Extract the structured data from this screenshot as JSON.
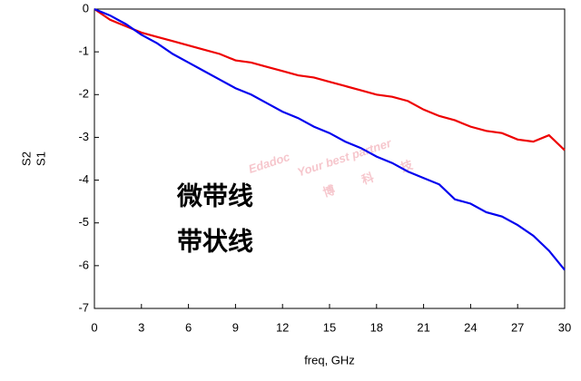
{
  "chart_data": {
    "type": "line",
    "xlabel": "freq, GHz",
    "x": [
      0,
      1,
      2,
      3,
      4,
      5,
      6,
      7,
      8,
      9,
      10,
      11,
      12,
      13,
      14,
      15,
      16,
      17,
      18,
      19,
      20,
      21,
      22,
      23,
      24,
      25,
      26,
      27,
      28,
      29,
      30
    ],
    "series": [
      {
        "name": "S2",
        "color": "#ee0000",
        "values": [
          0,
          -0.25,
          -0.4,
          -0.55,
          -0.65,
          -0.75,
          -0.85,
          -0.95,
          -1.05,
          -1.2,
          -1.25,
          -1.35,
          -1.45,
          -1.55,
          -1.6,
          -1.7,
          -1.8,
          -1.9,
          -2.0,
          -2.05,
          -2.15,
          -2.35,
          -2.5,
          -2.6,
          -2.75,
          -2.85,
          -2.9,
          -3.05,
          -3.1,
          -2.95,
          -3.3
        ]
      },
      {
        "name": "S1",
        "color": "#0000ee",
        "values": [
          0,
          -0.15,
          -0.35,
          -0.6,
          -0.8,
          -1.05,
          -1.25,
          -1.45,
          -1.65,
          -1.85,
          -2.0,
          -2.2,
          -2.4,
          -2.55,
          -2.75,
          -2.9,
          -3.1,
          -3.25,
          -3.45,
          -3.6,
          -3.8,
          -3.95,
          -4.1,
          -4.45,
          -4.55,
          -4.75,
          -4.85,
          -5.05,
          -5.3,
          -5.65,
          -6.1
        ]
      }
    ],
    "xlim": [
      0,
      30
    ],
    "xticks": [
      0,
      3,
      6,
      9,
      12,
      15,
      18,
      21,
      24,
      27,
      30
    ],
    "ylim": [
      -7,
      0
    ],
    "yticks": [
      0,
      -1,
      -2,
      -3,
      -4,
      -5,
      -6,
      -7
    ],
    "annotations": [
      {
        "text": "微带线",
        "color": "#0000dd"
      },
      {
        "text": "带状线",
        "color": "#ee0000"
      }
    ],
    "watermark": [
      "Edadoc",
      "Your best partner",
      "博",
      "科",
      "技"
    ]
  }
}
